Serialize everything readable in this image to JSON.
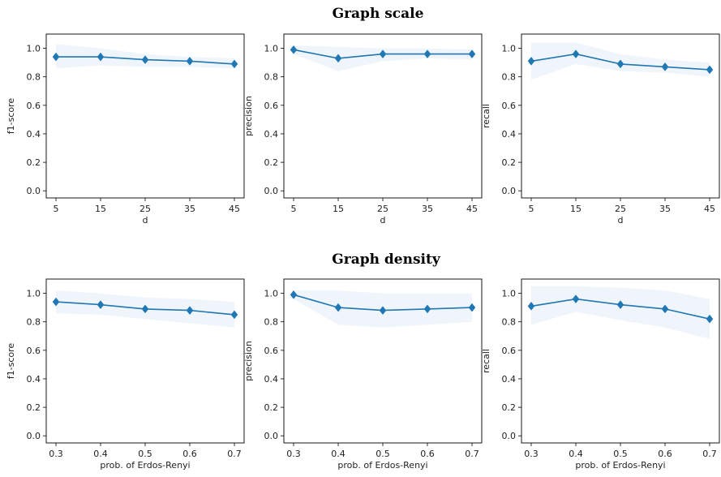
{
  "figure": {
    "row_titles": [
      "Graph scale",
      "Graph density"
    ]
  },
  "colors": {
    "line": "#1f77b4",
    "band": "#1f77b4",
    "axes": "#000000",
    "text": "#222222"
  },
  "chart_data": [
    {
      "type": "line",
      "row": 0,
      "col": 0,
      "x": [
        5,
        15,
        25,
        35,
        45
      ],
      "x_tick_labels": [
        "5",
        "15",
        "25",
        "35",
        "45"
      ],
      "xlabel": "d",
      "ylabel": "f1-score",
      "ylim": [
        -0.05,
        1.1
      ],
      "y_ticks": [
        0.0,
        0.2,
        0.4,
        0.6,
        0.8,
        1.0
      ],
      "y_tick_labels": [
        "0.0",
        "0.2",
        "0.4",
        "0.6",
        "0.8",
        "1.0"
      ],
      "marker": "diamond",
      "series": [
        {
          "values": [
            0.94,
            0.94,
            0.92,
            0.91,
            0.89
          ],
          "band_low": [
            0.86,
            0.88,
            0.87,
            0.87,
            0.86
          ],
          "band_high": [
            1.03,
            1.0,
            0.96,
            0.94,
            0.93
          ]
        }
      ]
    },
    {
      "type": "line",
      "row": 0,
      "col": 1,
      "x": [
        5,
        15,
        25,
        35,
        45
      ],
      "x_tick_labels": [
        "5",
        "15",
        "25",
        "35",
        "45"
      ],
      "xlabel": "d",
      "ylabel": "precision",
      "ylim": [
        -0.05,
        1.1
      ],
      "y_ticks": [
        0.0,
        0.2,
        0.4,
        0.6,
        0.8,
        1.0
      ],
      "y_tick_labels": [
        "0.0",
        "0.2",
        "0.4",
        "0.6",
        "0.8",
        "1.0"
      ],
      "marker": "diamond",
      "series": [
        {
          "values": [
            0.99,
            0.93,
            0.96,
            0.96,
            0.96
          ],
          "band_low": [
            0.96,
            0.84,
            0.91,
            0.93,
            0.92
          ],
          "band_high": [
            1.02,
            1.01,
            1.0,
            1.0,
            0.99
          ]
        }
      ]
    },
    {
      "type": "line",
      "row": 0,
      "col": 2,
      "x": [
        5,
        15,
        25,
        35,
        45
      ],
      "x_tick_labels": [
        "5",
        "15",
        "25",
        "35",
        "45"
      ],
      "xlabel": "d",
      "ylabel": "recall",
      "ylim": [
        -0.05,
        1.1
      ],
      "y_ticks": [
        0.0,
        0.2,
        0.4,
        0.6,
        0.8,
        1.0
      ],
      "y_tick_labels": [
        "0.0",
        "0.2",
        "0.4",
        "0.6",
        "0.8",
        "1.0"
      ],
      "marker": "diamond",
      "series": [
        {
          "values": [
            0.91,
            0.96,
            0.89,
            0.87,
            0.85
          ],
          "band_low": [
            0.78,
            0.89,
            0.84,
            0.83,
            0.8
          ],
          "band_high": [
            1.04,
            1.04,
            0.96,
            0.92,
            0.9
          ]
        }
      ]
    },
    {
      "type": "line",
      "row": 1,
      "col": 0,
      "x": [
        0.3,
        0.4,
        0.5,
        0.6,
        0.7
      ],
      "x_tick_labels": [
        "0.3",
        "0.4",
        "0.5",
        "0.6",
        "0.7"
      ],
      "xlabel": "prob. of Erdos-Renyi",
      "ylabel": "f1-score",
      "ylim": [
        -0.05,
        1.1
      ],
      "y_ticks": [
        0.0,
        0.2,
        0.4,
        0.6,
        0.8,
        1.0
      ],
      "y_tick_labels": [
        "0.0",
        "0.2",
        "0.4",
        "0.6",
        "0.8",
        "1.0"
      ],
      "marker": "diamond",
      "series": [
        {
          "values": [
            0.94,
            0.92,
            0.89,
            0.88,
            0.85
          ],
          "band_low": [
            0.86,
            0.85,
            0.82,
            0.79,
            0.76
          ],
          "band_high": [
            1.02,
            1.0,
            0.97,
            0.96,
            0.94
          ]
        }
      ]
    },
    {
      "type": "line",
      "row": 1,
      "col": 1,
      "x": [
        0.3,
        0.4,
        0.5,
        0.6,
        0.7
      ],
      "x_tick_labels": [
        "0.3",
        "0.4",
        "0.5",
        "0.6",
        "0.7"
      ],
      "xlabel": "prob. of Erdos-Renyi",
      "ylabel": "precision",
      "ylim": [
        -0.05,
        1.1
      ],
      "y_ticks": [
        0.0,
        0.2,
        0.4,
        0.6,
        0.8,
        1.0
      ],
      "y_tick_labels": [
        "0.0",
        "0.2",
        "0.4",
        "0.6",
        "0.8",
        "1.0"
      ],
      "marker": "diamond",
      "series": [
        {
          "values": [
            0.99,
            0.9,
            0.88,
            0.89,
            0.9
          ],
          "band_low": [
            0.96,
            0.78,
            0.76,
            0.78,
            0.8
          ],
          "band_high": [
            1.02,
            1.02,
            1.0,
            1.0,
            1.0
          ]
        }
      ]
    },
    {
      "type": "line",
      "row": 1,
      "col": 2,
      "x": [
        0.3,
        0.4,
        0.5,
        0.6,
        0.7
      ],
      "x_tick_labels": [
        "0.3",
        "0.4",
        "0.5",
        "0.6",
        "0.7"
      ],
      "xlabel": "prob. of Erdos-Renyi",
      "ylabel": "recall",
      "ylim": [
        -0.05,
        1.1
      ],
      "y_ticks": [
        0.0,
        0.2,
        0.4,
        0.6,
        0.8,
        1.0
      ],
      "y_tick_labels": [
        "0.0",
        "0.2",
        "0.4",
        "0.6",
        "0.8",
        "1.0"
      ],
      "marker": "diamond",
      "series": [
        {
          "values": [
            0.91,
            0.96,
            0.92,
            0.89,
            0.82
          ],
          "band_low": [
            0.78,
            0.87,
            0.81,
            0.76,
            0.68
          ],
          "band_high": [
            1.05,
            1.05,
            1.04,
            1.02,
            0.96
          ]
        }
      ]
    }
  ]
}
